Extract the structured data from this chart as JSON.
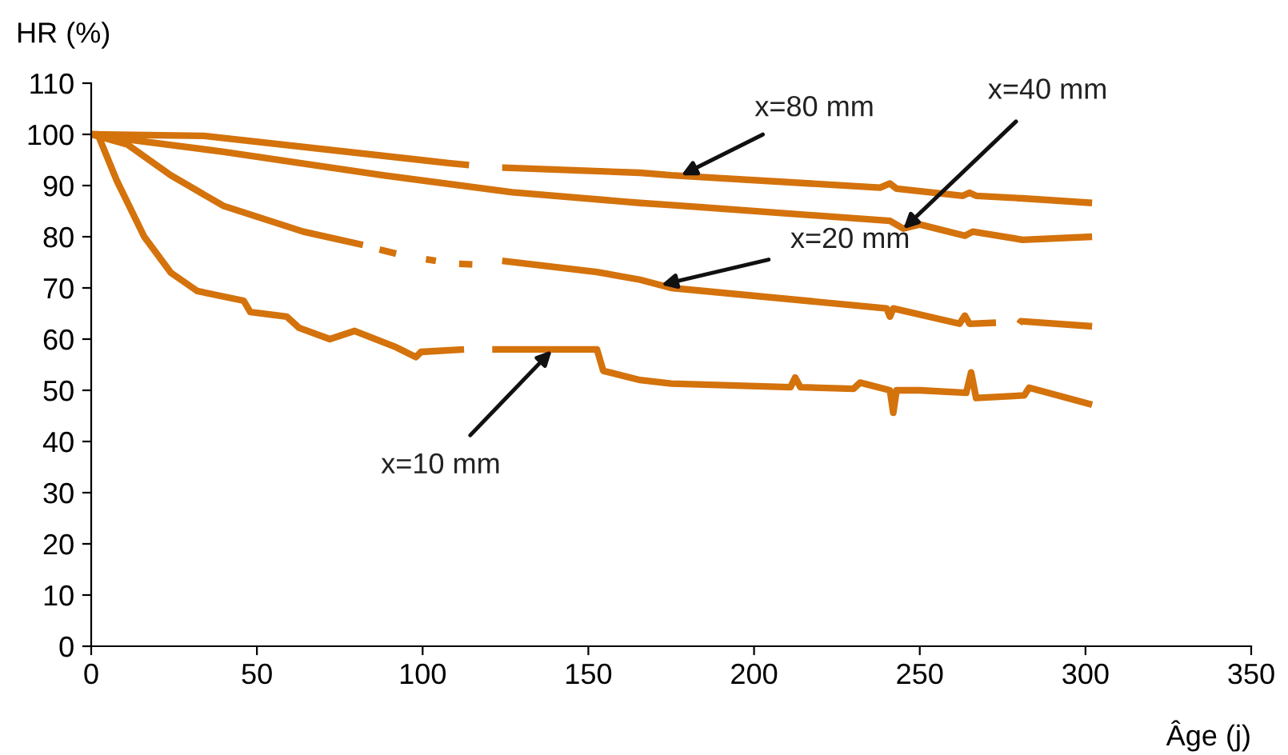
{
  "chart_data": {
    "type": "line",
    "xlabel": "Âge (j)",
    "ylabel": "HR (%)",
    "xlim": [
      0,
      350
    ],
    "ylim": [
      0,
      110
    ],
    "xticks": [
      0,
      50,
      100,
      150,
      200,
      250,
      300,
      350
    ],
    "yticks": [
      0,
      10,
      20,
      30,
      40,
      50,
      60,
      70,
      80,
      90,
      100,
      110
    ],
    "grid": false,
    "legend": false,
    "marker": "none",
    "line_style": "solid",
    "series": [
      {
        "color": "#d4720c",
        "x": [
          0,
          34,
          107.7,
          114,
          114.5,
          124,
          124.5,
          165.6,
          175,
          238,
          241,
          243,
          263,
          265,
          267,
          281,
          302
        ],
        "values": [
          100,
          99.7,
          94.4,
          94,
          null,
          93.5,
          93.5,
          92.5,
          92,
          89.6,
          90.4,
          89.4,
          88,
          88.6,
          88,
          87.5,
          86.6
        ]
      },
      {
        "color": "#d4720c",
        "x": [
          0,
          11,
          40,
          88,
          127,
          165.6,
          175,
          241,
          245,
          250,
          263.6,
          266,
          281,
          302
        ],
        "values": [
          100,
          99,
          96.6,
          92,
          88.7,
          86.6,
          86.2,
          83.1,
          81.6,
          82.4,
          80.2,
          81,
          79.4,
          80
        ]
      },
      {
        "color": "#d4720c",
        "x": [
          0,
          11,
          24,
          40,
          64,
          82,
          82.5,
          87,
          92,
          92.5,
          101,
          104,
          104.5,
          111,
          115,
          115.5,
          124,
          152.6,
          165.6,
          175,
          240,
          241,
          242,
          262,
          263.6,
          265,
          273,
          273.5,
          280,
          280.5,
          302
        ],
        "values": [
          100,
          98,
          92,
          86,
          81,
          78.4,
          null,
          77.5,
          76.7,
          null,
          75.6,
          75.3,
          null,
          74.7,
          74.6,
          null,
          75.3,
          73.1,
          71.6,
          70,
          66,
          64.4,
          66,
          63,
          64.6,
          63,
          63.2,
          null,
          63,
          63.5,
          62.5
        ]
      },
      {
        "color": "#d4720c",
        "x": [
          0,
          2,
          7.7,
          16,
          24,
          32,
          46,
          48,
          59,
          62.7,
          72,
          79.5,
          92,
          98,
          99.5,
          112.5,
          113,
          121,
          122,
          152.6,
          154.5,
          165.6,
          175,
          211,
          212.4,
          214,
          230,
          232,
          241,
          242,
          243,
          250,
          264,
          265.5,
          267,
          281.5,
          283,
          302
        ],
        "values": [
          100,
          100,
          91,
          80,
          73,
          69.4,
          67.5,
          65.3,
          64.4,
          62.2,
          60,
          61.6,
          58.4,
          56.5,
          57.5,
          58,
          null,
          58,
          58,
          58,
          53.8,
          52,
          51.3,
          50.6,
          52.5,
          50.6,
          50.3,
          51.5,
          50,
          45.6,
          50,
          50,
          49.5,
          53.5,
          48.5,
          49,
          50.5,
          47.2
        ]
      }
    ],
    "annotations": [
      {
        "text": "x=80 mm",
        "x": 178,
        "y": 92
      },
      {
        "text": "x=40 mm",
        "x": 245,
        "y": 81.5
      },
      {
        "text": "x=20 mm",
        "x": 172,
        "y": 70.6
      },
      {
        "text": "x=10 mm",
        "x": 139,
        "y": 57.8
      }
    ]
  }
}
